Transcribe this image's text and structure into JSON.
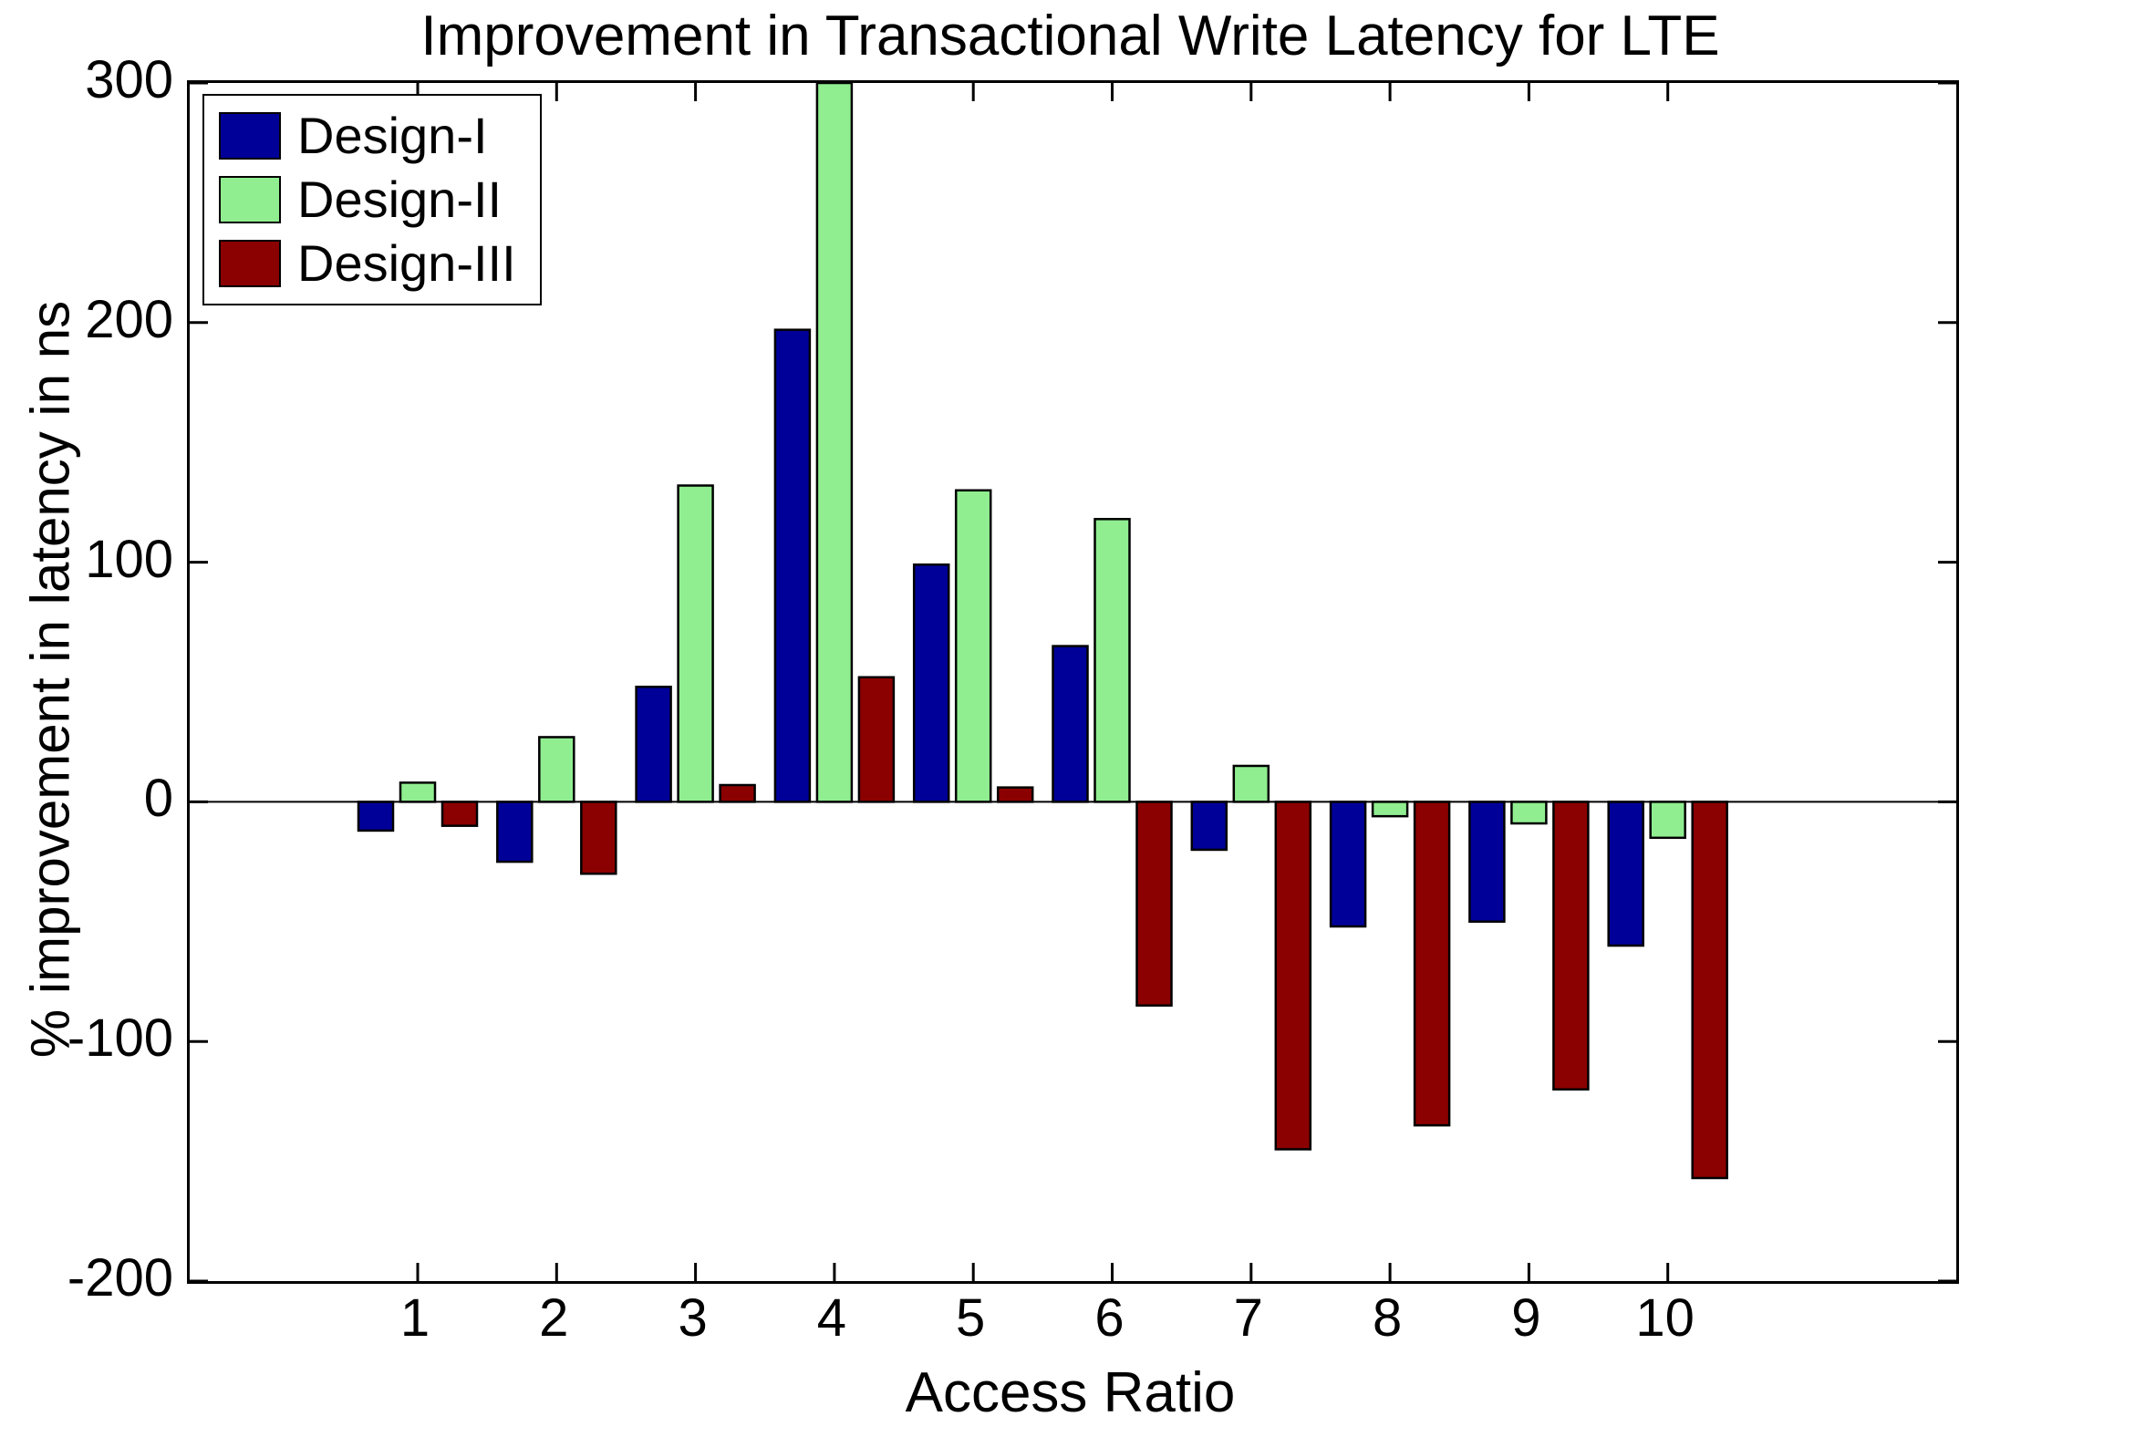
{
  "chart_data": {
    "type": "bar",
    "title": "Improvement in Transactional Write Latency for LTE",
    "xlabel": "Access Ratio",
    "ylabel": "% improvement in latency in ns",
    "categories": [
      "1",
      "2",
      "3",
      "4",
      "5",
      "6",
      "7",
      "8",
      "9",
      "10"
    ],
    "series": [
      {
        "name": "Design-I",
        "color": "#000099",
        "values": [
          -12,
          -25,
          48,
          197,
          99,
          65,
          -20,
          -52,
          -50,
          -60
        ]
      },
      {
        "name": "Design-II",
        "color": "#90EE90",
        "values": [
          8,
          27,
          132,
          300,
          130,
          118,
          15,
          -6,
          -9,
          -15
        ]
      },
      {
        "name": "Design-III",
        "color": "#8B0000",
        "values": [
          -10,
          -30,
          7,
          52,
          6,
          -85,
          -145,
          -135,
          -120,
          -157
        ]
      }
    ],
    "ylim": [
      -200,
      300
    ],
    "yticks": [
      -200,
      -100,
      0,
      100,
      200,
      300
    ],
    "grid": false,
    "legend_position": "top-left",
    "bar_edge_color": "#000000",
    "background": "#FFFFFF",
    "note": "Design-II value at Access Ratio 4 is clipped at top of axis (300)"
  }
}
